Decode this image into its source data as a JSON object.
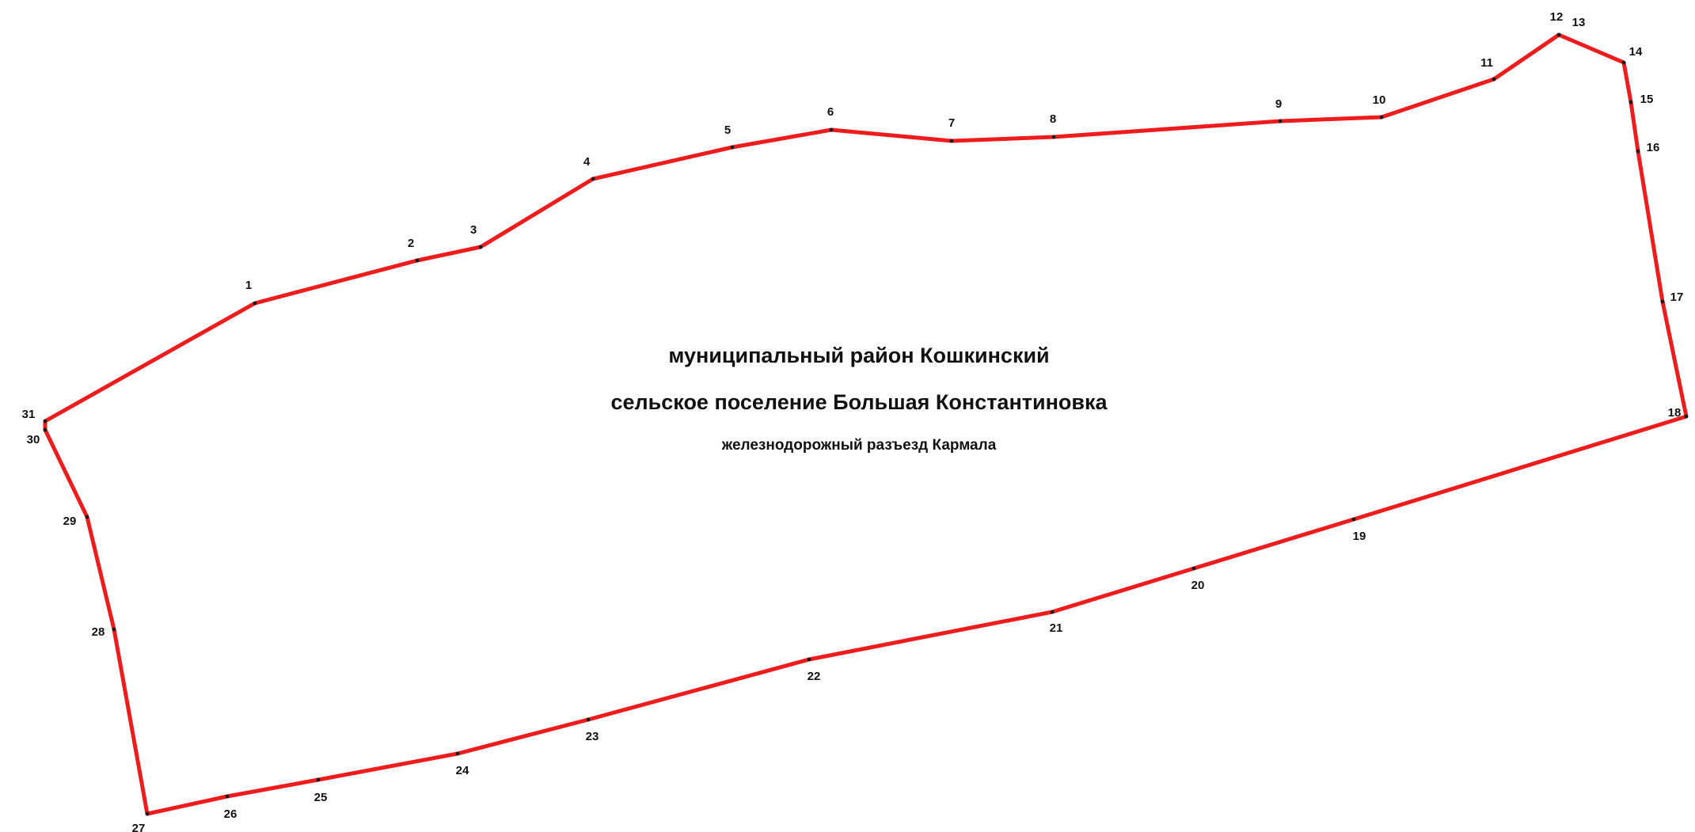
{
  "map": {
    "titles": {
      "district": "муниципальный район Кошкинский",
      "settlement": "сельское поселение Большая Константиновка",
      "locality": "железнодорожный разъезд Кармала"
    },
    "boundary_color": "#ee1c1c",
    "label_color": "#111111",
    "vertex_labels": [
      "1",
      "2",
      "3",
      "4",
      "5",
      "6",
      "7",
      "8",
      "9",
      "10",
      "11",
      "12",
      "13",
      "14",
      "15",
      "16",
      "17",
      "18",
      "19",
      "20",
      "21",
      "22",
      "23",
      "24",
      "25",
      "26",
      "27",
      "28",
      "29",
      "30",
      "31"
    ]
  }
}
